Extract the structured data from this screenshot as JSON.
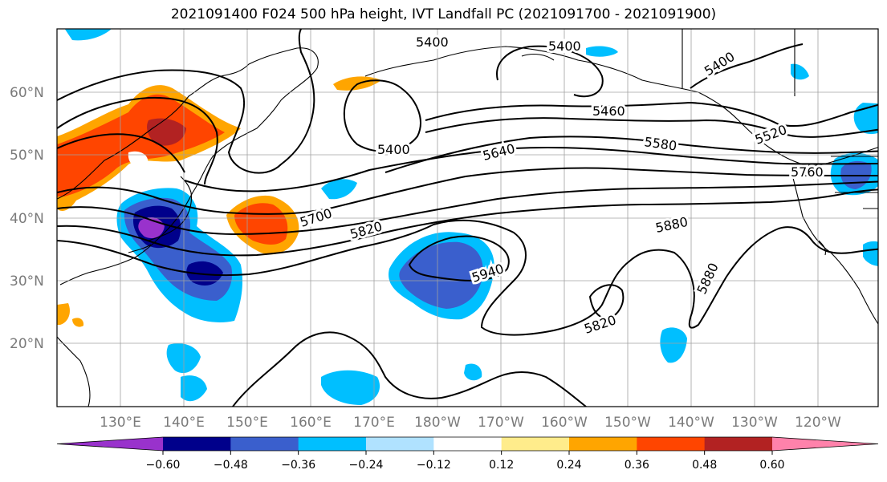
{
  "title": "2021091400 F024 500 hPa height, IVT Landfall PC (2021091700 - 2021091900)",
  "map": {
    "lat_labels": [
      "60°N",
      "50°N",
      "40°N",
      "30°N",
      "20°N"
    ],
    "lon_labels": [
      "130°E",
      "140°E",
      "150°E",
      "160°E",
      "170°E",
      "180°W",
      "170°W",
      "160°W",
      "150°W",
      "140°W",
      "130°W",
      "120°W"
    ],
    "contour_labels": [
      "5400",
      "5400",
      "5400",
      "5400",
      "5460",
      "5520",
      "5580",
      "5640",
      "5700",
      "5760",
      "5820",
      "5820",
      "5880",
      "5880",
      "5940"
    ]
  },
  "colorbar": {
    "ticks": [
      "−0.60",
      "−0.48",
      "−0.36",
      "−0.24",
      "−0.12",
      "0.12",
      "0.24",
      "0.36",
      "0.48",
      "0.60"
    ],
    "colors": [
      "#9932cc",
      "#00008b",
      "#3a5fcd",
      "#00bfff",
      "#b0e2ff",
      "#ffffff",
      "#ffec8b",
      "#ffa500",
      "#ff4500",
      "#b22222",
      "#ff82ab"
    ]
  }
}
